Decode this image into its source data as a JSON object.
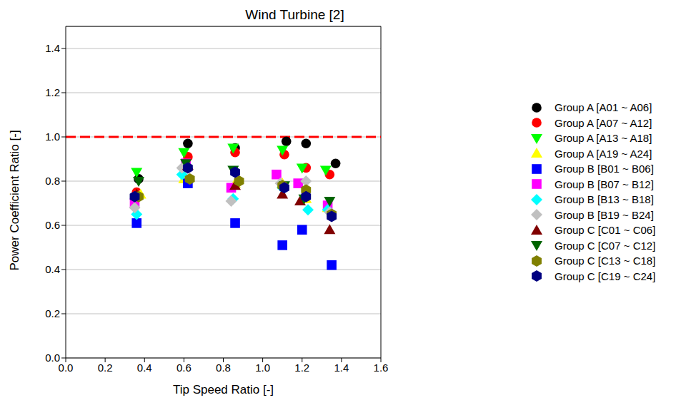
{
  "chart_data": {
    "type": "scatter",
    "title": "Wind Turbine [2]",
    "x_label": "Tip Speed Ratio [-]",
    "y_label": "Power Coefficient Ratio [-]",
    "xlim": [
      0,
      1.6
    ],
    "ylim": [
      0,
      1.5
    ],
    "xticks": [
      {
        "value": 0,
        "label": "0.0"
      },
      0.2,
      0.4,
      0.6,
      0.8,
      {
        "value": 1,
        "label": "1.0"
      },
      1.2,
      1.4,
      1.6
    ],
    "yticks": [
      {
        "value": 0,
        "label": "0.0"
      },
      0.2,
      0.4,
      0.6,
      0.8,
      {
        "value": 1,
        "label": "1.0"
      },
      1.2,
      1.4
    ],
    "grid": "y",
    "legend": "right",
    "reference_line": {
      "y": 1.0,
      "color": "#ff0000",
      "line_style": "dashed"
    },
    "series": [
      {
        "name": "Group A [A01 ~ A06]",
        "color": "#000000",
        "marker": "circle",
        "x": [
          0.37,
          0.62,
          0.86,
          1.12,
          1.22,
          1.37
        ],
        "y": [
          0.81,
          0.97,
          0.95,
          0.98,
          0.97,
          0.88
        ]
      },
      {
        "name": "Group A [A07 ~ A12]",
        "color": "#ff0000",
        "marker": "circle",
        "x": [
          0.36,
          0.62,
          0.86,
          1.11,
          1.22,
          1.34
        ],
        "y": [
          0.75,
          0.91,
          0.93,
          0.92,
          0.86,
          0.83
        ]
      },
      {
        "name": "Group A [A13 ~ A18]",
        "color": "#00ff00",
        "marker": "triangle_down",
        "x": [
          0.36,
          0.6,
          0.85,
          1.1,
          1.2,
          1.32
        ],
        "y": [
          0.84,
          0.93,
          0.95,
          0.94,
          0.86,
          0.85
        ]
      },
      {
        "name": "Group A [A19 ~ A24]",
        "color": "#ffff00",
        "marker": "triangle_up",
        "x": [
          0.38,
          0.6,
          0.86,
          1.1,
          1.22,
          1.33
        ],
        "y": [
          0.74,
          0.81,
          0.79,
          0.79,
          0.72,
          0.68
        ]
      },
      {
        "name": "Group B [B01 ~ B06]",
        "color": "#0000ff",
        "marker": "square",
        "x": [
          0.36,
          0.62,
          0.86,
          1.1,
          1.2,
          1.35
        ],
        "y": [
          0.61,
          0.79,
          0.61,
          0.51,
          0.58,
          0.42
        ]
      },
      {
        "name": "Group B [B07 ~ B12]",
        "color": "#ff00ff",
        "marker": "square",
        "x": [
          0.35,
          0.61,
          0.84,
          1.07,
          1.18,
          1.33
        ],
        "y": [
          0.7,
          0.88,
          0.77,
          0.83,
          0.79,
          0.69
        ]
      },
      {
        "name": "Group B [B13 ~ B18]",
        "color": "#00ffff",
        "marker": "diamond",
        "x": [
          0.36,
          0.59,
          0.85,
          1.1,
          1.23,
          1.33
        ],
        "y": [
          0.65,
          0.83,
          0.72,
          0.77,
          0.67,
          0.67
        ]
      },
      {
        "name": "Group B [B19 ~ B24]",
        "color": "#c0c0c0",
        "marker": "diamond",
        "x": [
          0.35,
          0.59,
          0.84,
          1.09,
          1.22,
          1.34
        ],
        "y": [
          0.68,
          0.86,
          0.71,
          0.79,
          0.8,
          0.66
        ]
      },
      {
        "name": "Group C [C01 ~ C06]",
        "color": "#800000",
        "marker": "triangle_up",
        "x": [
          0.36,
          0.62,
          0.86,
          1.1,
          1.19,
          1.34
        ],
        "y": [
          0.74,
          0.87,
          0.78,
          0.74,
          0.71,
          0.58
        ]
      },
      {
        "name": "Group C [C07 ~ C12]",
        "color": "#006400",
        "marker": "triangle_down",
        "x": [
          0.37,
          0.61,
          0.85,
          1.11,
          1.21,
          1.34
        ],
        "y": [
          0.8,
          0.88,
          0.85,
          0.78,
          0.72,
          0.71
        ]
      },
      {
        "name": "Group C [C13 ~ C18]",
        "color": "#808000",
        "marker": "hexagon",
        "x": [
          0.37,
          0.63,
          0.88,
          1.1,
          1.22,
          1.35
        ],
        "y": [
          0.73,
          0.81,
          0.8,
          0.78,
          0.76,
          0.65
        ]
      },
      {
        "name": "Group C [C19 ~ C24]",
        "color": "#000080",
        "marker": "hexagon",
        "x": [
          0.35,
          0.62,
          0.86,
          1.11,
          1.22,
          1.35
        ],
        "y": [
          0.73,
          0.86,
          0.84,
          0.77,
          0.73,
          0.64
        ]
      }
    ]
  }
}
